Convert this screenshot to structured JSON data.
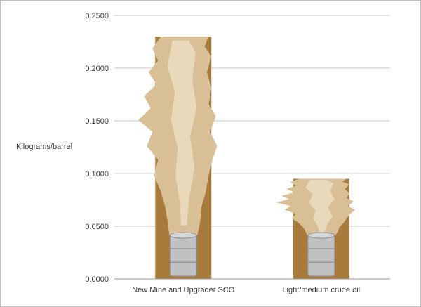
{
  "chart_data": {
    "type": "bar",
    "ylabel": "Kilograms/barrel",
    "categories": [
      "New Mine and Upgrader SCO",
      "Light/medium crude oil"
    ],
    "values": [
      0.23,
      0.095
    ],
    "ylim": [
      0,
      0.25
    ],
    "yticks": [
      "0.0000",
      "0.0500",
      "0.1000",
      "0.1500",
      "0.2000",
      "0.2500"
    ],
    "grid": true,
    "colors": {
      "bar": "#a87a3c",
      "plume": "#d8bf96",
      "plume_light": "#ecdcc0",
      "drum": "#bfc1c3",
      "grid": "#c8c8c8"
    }
  }
}
